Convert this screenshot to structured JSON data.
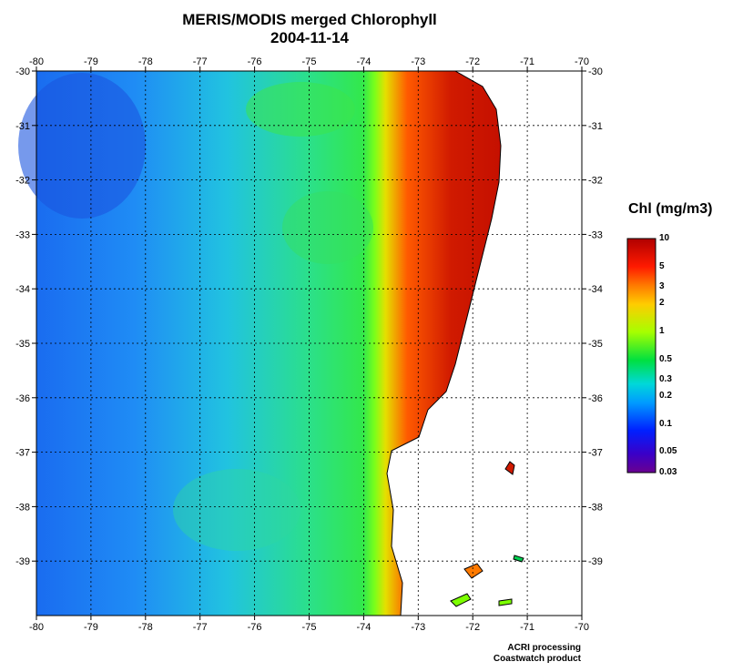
{
  "title": "MERIS/MODIS merged Chlorophyll",
  "date": "2004-11-14",
  "map": {
    "lon_ticks": [
      "-80",
      "-79",
      "-78",
      "-77",
      "-76",
      "-75",
      "-74",
      "-73",
      "-72",
      "-71",
      "-70"
    ],
    "lat_ticks": [
      "-30",
      "-31",
      "-32",
      "-33",
      "-34",
      "-35",
      "-36",
      "-37",
      "-38",
      "-39"
    ],
    "lon_range": [
      -80,
      -70
    ],
    "lat_range": [
      -30,
      -40
    ],
    "grid": true,
    "land_color": "#ffffff",
    "coast_line_color": "#000000"
  },
  "colorbar": {
    "title": "Chl (mg/m3)",
    "labels": [
      "10",
      "5",
      "3",
      "2",
      "1",
      "0.5",
      "0.3",
      "0.2",
      "0.1",
      "0.05",
      "0.03"
    ],
    "colors": [
      "#b00000",
      "#ff2000",
      "#ff8c00",
      "#ffe000",
      "#7cff00",
      "#00e050",
      "#00d0d0",
      "#00a0ff",
      "#0040ff",
      "#3000c0",
      "#6a0090"
    ]
  },
  "credits": {
    "line1": "ACRI processing",
    "line2": "Coastwatch product"
  }
}
